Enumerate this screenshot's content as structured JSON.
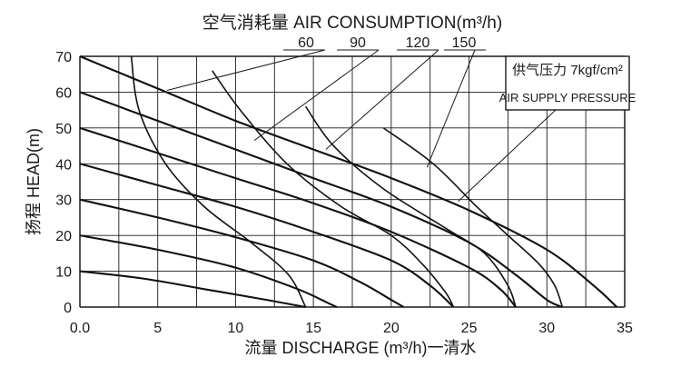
{
  "chart_data": {
    "type": "line",
    "title": "空气消耗量 AIR CONSUMPTION(m³/h)",
    "xlabel": "流量 DISCHARGE (m³/h)一清水",
    "ylabel": "扬程 HEAD(m)",
    "xlim": [
      0,
      35
    ],
    "ylim": [
      0,
      70
    ],
    "x_ticks": [
      "0.0",
      "5",
      "10",
      "15",
      "20",
      "25",
      "30",
      "35"
    ],
    "y_ticks": [
      "0",
      "10",
      "20",
      "30",
      "40",
      "50",
      "60",
      "70"
    ],
    "grid": true,
    "legend": {
      "position": "top-right",
      "line1": "供气压力 7kgf/cm²",
      "line2": "AIR SUPPLY PRESSURE"
    },
    "pressure_curves": [
      {
        "points": [
          [
            0,
            70
          ],
          [
            5,
            61
          ],
          [
            10,
            52
          ],
          [
            15,
            44
          ],
          [
            20,
            36
          ],
          [
            25,
            27
          ],
          [
            30,
            16
          ],
          [
            33,
            6
          ],
          [
            34.5,
            0
          ]
        ]
      },
      {
        "points": [
          [
            0,
            60
          ],
          [
            5,
            52
          ],
          [
            10,
            44
          ],
          [
            15,
            36
          ],
          [
            20,
            28
          ],
          [
            25,
            18
          ],
          [
            28,
            9
          ],
          [
            30,
            2
          ],
          [
            31,
            0
          ]
        ]
      },
      {
        "points": [
          [
            0,
            50
          ],
          [
            5,
            43
          ],
          [
            10,
            36
          ],
          [
            15,
            29
          ],
          [
            20,
            21
          ],
          [
            25,
            11
          ],
          [
            27,
            5
          ],
          [
            28,
            0
          ]
        ]
      },
      {
        "points": [
          [
            0,
            40
          ],
          [
            5,
            34
          ],
          [
            10,
            28
          ],
          [
            15,
            21
          ],
          [
            20,
            13
          ],
          [
            22.5,
            6
          ],
          [
            24,
            0
          ]
        ]
      },
      {
        "points": [
          [
            0,
            30
          ],
          [
            5,
            25
          ],
          [
            10,
            19.5
          ],
          [
            15,
            13
          ],
          [
            18,
            7
          ],
          [
            20,
            2
          ],
          [
            20.8,
            0
          ]
        ]
      },
      {
        "points": [
          [
            0,
            20
          ],
          [
            5,
            16
          ],
          [
            10,
            11
          ],
          [
            14,
            5
          ],
          [
            16,
            1
          ],
          [
            16.5,
            0
          ]
        ]
      },
      {
        "points": [
          [
            0,
            10
          ],
          [
            4,
            8
          ],
          [
            8,
            5
          ],
          [
            12,
            2
          ],
          [
            14.5,
            0
          ]
        ]
      }
    ],
    "consumption_curves": [
      {
        "label": "60",
        "points": [
          [
            3.3,
            70
          ],
          [
            3.8,
            55
          ],
          [
            5.5,
            40
          ],
          [
            8,
            28
          ],
          [
            11,
            18
          ],
          [
            13.4,
            9
          ],
          [
            14.5,
            0
          ]
        ]
      },
      {
        "label": "90",
        "points": [
          [
            8.5,
            66
          ],
          [
            10.3,
            55
          ],
          [
            13.3,
            40
          ],
          [
            16.8,
            28
          ],
          [
            20,
            20
          ],
          [
            22,
            12
          ],
          [
            23.5,
            4
          ],
          [
            24,
            0
          ]
        ]
      },
      {
        "label": "120",
        "points": [
          [
            14.5,
            56
          ],
          [
            16.3,
            45
          ],
          [
            19.5,
            33
          ],
          [
            23.5,
            22
          ],
          [
            26,
            15
          ],
          [
            27.5,
            6
          ],
          [
            28,
            0
          ]
        ]
      },
      {
        "label": "150",
        "points": [
          [
            19.5,
            50
          ],
          [
            22.7,
            40
          ],
          [
            25.5,
            28
          ],
          [
            27.5,
            20
          ],
          [
            29.5,
            12
          ],
          [
            30.5,
            6
          ],
          [
            31,
            0
          ]
        ]
      }
    ]
  }
}
